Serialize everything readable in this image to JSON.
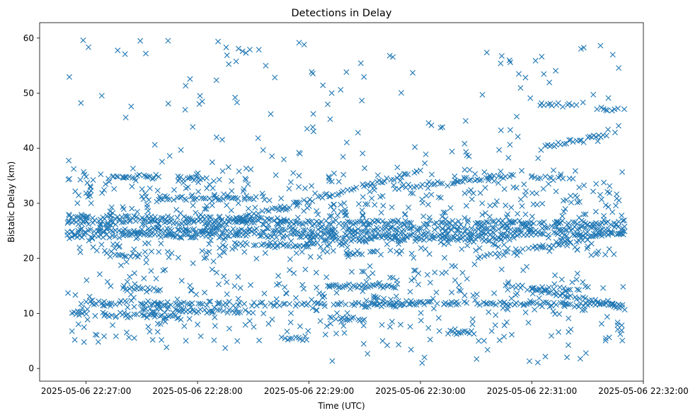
{
  "chart_data": {
    "type": "scatter",
    "title": "Detections in Delay",
    "xlabel": "Time (UTC)",
    "ylabel": "Bistatic Delay (km)",
    "x_axis_kind": "datetime",
    "xlim": [
      "2025-05-06 22:26:35",
      "2025-05-06 22:32:00"
    ],
    "ylim": [
      -2.3,
      62.8
    ],
    "x_ticks": [
      "2025-05-06 22:27:00",
      "2025-05-06 22:28:00",
      "2025-05-06 22:29:00",
      "2025-05-06 22:30:00",
      "2025-05-06 22:31:00",
      "2025-05-06 22:32:00"
    ],
    "y_ticks": [
      0,
      10,
      20,
      30,
      40,
      50,
      60
    ],
    "marker": "x",
    "color": "#1f77b4",
    "grid": false,
    "legend": "none",
    "time_range": [
      "2025-05-06 22:26:50",
      "2025-05-06 22:31:50"
    ],
    "tracks": [
      {
        "start": "22:26:50",
        "end": "22:31:50",
        "delay_start": 24.0,
        "delay_end": 24.5
      },
      {
        "start": "22:26:50",
        "end": "22:31:50",
        "delay_start": 25.0,
        "delay_end": 25.5
      },
      {
        "start": "22:26:50",
        "end": "22:31:50",
        "delay_start": 26.5,
        "delay_end": 26.5
      },
      {
        "start": "22:26:50",
        "end": "22:28:50",
        "delay_start": 27.5,
        "delay_end": 27.0
      },
      {
        "start": "22:26:50",
        "end": "22:27:50",
        "delay_start": 10.0,
        "delay_end": 9.5
      },
      {
        "start": "22:27:00",
        "end": "22:29:50",
        "delay_start": 12.0,
        "delay_end": 11.5
      },
      {
        "start": "22:27:30",
        "end": "22:28:30",
        "delay_start": 10.5,
        "delay_end": 10.5
      },
      {
        "start": "22:29:30",
        "end": "22:31:50",
        "delay_start": 12.0,
        "delay_end": 11.5
      },
      {
        "start": "22:28:20",
        "end": "22:29:20",
        "delay_start": 22.5,
        "delay_end": 22.5
      },
      {
        "start": "22:29:00",
        "end": "22:30:50",
        "delay_start": 23.5,
        "delay_end": 23.5
      },
      {
        "start": "22:28:00",
        "end": "22:30:00",
        "delay_start": 25.0,
        "delay_end": 36.0
      },
      {
        "start": "22:29:50",
        "end": "22:30:50",
        "delay_start": 33.0,
        "delay_end": 35.0
      },
      {
        "start": "22:31:05",
        "end": "22:31:45",
        "delay_start": 40.0,
        "delay_end": 43.0
      },
      {
        "start": "22:30:45",
        "end": "22:31:50",
        "delay_start": 15.5,
        "delay_end": 11.0
      },
      {
        "start": "22:30:30",
        "end": "22:31:50",
        "delay_start": 20.0,
        "delay_end": 25.0
      },
      {
        "start": "22:27:15",
        "end": "22:27:40",
        "delay_start": 34.8,
        "delay_end": 34.8
      },
      {
        "start": "22:27:30",
        "end": "22:28:10",
        "delay_start": 31.0,
        "delay_end": 31.0
      },
      {
        "start": "22:28:10",
        "end": "22:28:30",
        "delay_start": 31.0,
        "delay_end": 31.0
      },
      {
        "start": "22:27:50",
        "end": "22:28:05",
        "delay_start": 34.5,
        "delay_end": 34.5
      },
      {
        "start": "22:31:00",
        "end": "22:31:20",
        "delay_start": 34.5,
        "delay_end": 34.5
      },
      {
        "start": "22:31:05",
        "end": "22:31:25",
        "delay_start": 47.8,
        "delay_end": 47.8
      },
      {
        "start": "22:31:35",
        "end": "22:31:50",
        "delay_start": 47.0,
        "delay_end": 47.0
      },
      {
        "start": "22:29:10",
        "end": "22:29:50",
        "delay_start": 15.0,
        "delay_end": 15.0
      },
      {
        "start": "22:27:20",
        "end": "22:27:40",
        "delay_start": 14.5,
        "delay_end": 14.5
      },
      {
        "start": "22:31:00",
        "end": "22:31:30",
        "delay_start": 14.5,
        "delay_end": 14.5
      },
      {
        "start": "22:27:10",
        "end": "22:27:30",
        "delay_start": 21.0,
        "delay_end": 20.5
      },
      {
        "start": "22:29:20",
        "end": "22:29:40",
        "delay_start": 21.0,
        "delay_end": 21.0
      },
      {
        "start": "22:28:45",
        "end": "22:29:00",
        "delay_start": 5.5,
        "delay_end": 5.5
      },
      {
        "start": "22:30:10",
        "end": "22:30:30",
        "delay_start": 6.5,
        "delay_end": 6.5
      },
      {
        "start": "22:29:10",
        "end": "22:29:30",
        "delay_start": 9.0,
        "delay_end": 9.0
      }
    ],
    "clutter": {
      "count": 1000,
      "delay_range": [
        0.5,
        60
      ]
    }
  }
}
